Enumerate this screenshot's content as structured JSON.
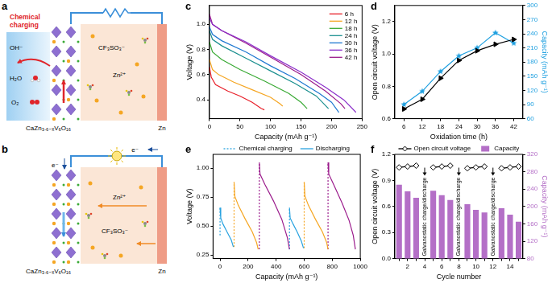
{
  "schematics": [
    {
      "panel": "a",
      "caption": "Chemical charging",
      "species": [
        "OH⁻",
        "H₂O",
        "O₂"
      ],
      "electrolyte": [
        "CF₃SO₃⁻",
        "Zn²⁺"
      ],
      "cathode": "CaZn₃.₆₋ₓV₆O₁₆",
      "anode": "Zn"
    },
    {
      "panel": "b",
      "electrons": [
        "e⁻",
        "e⁻"
      ],
      "electrolyte": [
        "Zn²⁺",
        "CF₃SO₃⁻"
      ],
      "cathode": "CaZn₃.₆₋ₓV₆O₁₆",
      "anode": "Zn"
    }
  ],
  "chart_data": [
    {
      "panel": "c",
      "type": "line",
      "x_label": "Capacity (mAh g⁻¹)",
      "y_label": "Voltage (V)",
      "xlim": [
        0,
        250
      ],
      "xticks": [
        0,
        50,
        100,
        150,
        200,
        250
      ],
      "ylim": [
        0.25,
        1.15
      ],
      "yticks": [
        0.4,
        0.6,
        0.8,
        {
          "value": 1,
          "label": "1.0"
        }
      ],
      "grid": false,
      "legend": "upper right",
      "series": [
        {
          "name": "6 h",
          "color": "#e8202a",
          "x": [
            0,
            3,
            10,
            30,
            50,
            70,
            85,
            90
          ],
          "values": [
            0.66,
            0.58,
            0.52,
            0.47,
            0.43,
            0.38,
            0.33,
            0.32
          ]
        },
        {
          "name": "12 h",
          "color": "#f5a623",
          "x": [
            0,
            5,
            15,
            40,
            70,
            100,
            115,
            120
          ],
          "values": [
            0.72,
            0.64,
            0.6,
            0.54,
            0.48,
            0.42,
            0.37,
            0.35
          ]
        },
        {
          "name": "18 h",
          "color": "#3aaa35",
          "x": [
            0,
            5,
            20,
            50,
            90,
            130,
            150,
            160
          ],
          "values": [
            0.86,
            0.78,
            0.72,
            0.64,
            0.55,
            0.45,
            0.38,
            0.33
          ]
        },
        {
          "name": "24 h",
          "color": "#1a8f8f",
          "x": [
            0,
            5,
            20,
            60,
            100,
            140,
            175,
            195
          ],
          "values": [
            0.95,
            0.88,
            0.83,
            0.73,
            0.63,
            0.53,
            0.43,
            0.33
          ]
        },
        {
          "name": "30 h",
          "color": "#1f78d1",
          "x": [
            0,
            5,
            20,
            60,
            100,
            140,
            180,
            200,
            212
          ],
          "values": [
            0.98,
            0.92,
            0.87,
            0.78,
            0.67,
            0.57,
            0.45,
            0.38,
            0.3
          ]
        },
        {
          "name": "36 h",
          "color": "#8b2fc9",
          "x": [
            0,
            5,
            20,
            60,
            100,
            150,
            190,
            220,
            240
          ],
          "values": [
            1.05,
            1.0,
            0.95,
            0.86,
            0.75,
            0.62,
            0.5,
            0.4,
            0.3
          ]
        },
        {
          "name": "42 h",
          "color": "#9b1c8c",
          "x": [
            0,
            5,
            20,
            60,
            100,
            150,
            190,
            215,
            222
          ],
          "values": [
            1.08,
            1.0,
            0.95,
            0.85,
            0.74,
            0.6,
            0.47,
            0.37,
            0.33
          ]
        }
      ]
    },
    {
      "panel": "d",
      "type": "line",
      "x_label": "Oxidation time (h)",
      "y_label": "Open circuit voltage (V)",
      "y2_label": "Capacity (mAh g⁻¹)",
      "x": [
        6,
        12,
        18,
        24,
        30,
        36,
        42
      ],
      "xlim": [
        3,
        45
      ],
      "xticks": [
        6,
        12,
        18,
        24,
        30,
        36,
        42
      ],
      "ylim": [
        0.6,
        1.3
      ],
      "yticks": [
        0.6,
        0.8,
        {
          "value": 1,
          "label": "1.0"
        },
        1.2
      ],
      "y2lim": [
        60,
        300
      ],
      "y2ticks": [
        60,
        90,
        120,
        150,
        180,
        210,
        240,
        270,
        300
      ],
      "grid": false,
      "series": [
        {
          "color": "#000000",
          "marker": "triangle",
          "values": [
            0.66,
            0.72,
            0.85,
            0.96,
            1.02,
            1.06,
            1.09
          ]
        },
        {
          "color": "#1fa0e0",
          "marker": "star",
          "axis": "y2",
          "values": [
            90,
            118,
            160,
            193,
            210,
            242,
            220
          ]
        }
      ]
    },
    {
      "panel": "e",
      "type": "line",
      "x_label": "Capacity (mAh g⁻¹)",
      "y_label": "Voltage (V)",
      "xlim": [
        -50,
        1000
      ],
      "xticks": [
        0,
        200,
        400,
        600,
        800,
        1000
      ],
      "ylim": [
        0.22,
        1.12
      ],
      "yticks": [
        0.25,
        {
          "value": 0.5,
          "label": "0.50"
        },
        0.75,
        {
          "value": 1,
          "label": "1.00"
        }
      ],
      "grid": false,
      "legend": "top",
      "series": [
        {
          "name": "Chemical charging",
          "color": "#29a3e0",
          "line_style": "dotted",
          "x": [
            0,
            0
          ],
          "values": [
            0.42,
            0.66
          ]
        },
        {
          "name": "Discharging",
          "color": "#29a3e0",
          "line_style": "solid",
          "x": [
            0,
            5,
            20,
            50,
            80,
            95
          ],
          "values": [
            0.66,
            0.57,
            0.52,
            0.45,
            0.38,
            0.32
          ]
        },
        {
          "name": "Chemical charging",
          "color": "#f5a623",
          "line_style": "dotted",
          "x": [
            100,
            100
          ],
          "values": [
            0.32,
            0.88
          ]
        },
        {
          "name": "Discharging",
          "color": "#f5a623",
          "line_style": "solid",
          "x": [
            100,
            105,
            130,
            180,
            230,
            260,
            272
          ],
          "values": [
            0.88,
            0.76,
            0.68,
            0.56,
            0.45,
            0.36,
            0.3
          ]
        },
        {
          "name": "Chemical charging",
          "color": "#9b1c8c",
          "line_style": "dotted",
          "x": [
            280,
            280
          ],
          "values": [
            0.3,
            1.05
          ]
        },
        {
          "name": "Discharging",
          "color": "#9b1c8c",
          "line_style": "solid",
          "x": [
            280,
            285,
            320,
            380,
            440,
            480,
            495
          ],
          "values": [
            1.05,
            0.95,
            0.86,
            0.72,
            0.56,
            0.4,
            0.3
          ]
        },
        {
          "name": "Chemical charging",
          "color": "#29a3e0",
          "line_style": "dotted",
          "x": [
            495,
            495
          ],
          "values": [
            0.3,
            0.66
          ]
        },
        {
          "name": "Discharging",
          "color": "#29a3e0",
          "line_style": "solid",
          "x": [
            495,
            500,
            520,
            550,
            580,
            595
          ],
          "values": [
            0.66,
            0.57,
            0.52,
            0.45,
            0.37,
            0.31
          ]
        },
        {
          "name": "Chemical charging",
          "color": "#f5a623",
          "line_style": "dotted",
          "x": [
            600,
            600
          ],
          "values": [
            0.31,
            0.88
          ]
        },
        {
          "name": "Discharging",
          "color": "#f5a623",
          "line_style": "solid",
          "x": [
            600,
            605,
            630,
            680,
            730,
            760,
            770
          ],
          "values": [
            0.88,
            0.76,
            0.68,
            0.56,
            0.45,
            0.36,
            0.3
          ]
        },
        {
          "name": "Chemical charging",
          "color": "#9b1c8c",
          "line_style": "dotted",
          "x": [
            770,
            770
          ],
          "values": [
            0.3,
            1.05
          ]
        },
        {
          "name": "Discharging",
          "color": "#9b1c8c",
          "line_style": "solid",
          "x": [
            770,
            775,
            810,
            870,
            920,
            950,
            965
          ],
          "values": [
            1.05,
            0.95,
            0.86,
            0.7,
            0.55,
            0.42,
            0.3
          ]
        }
      ]
    },
    {
      "panel": "f",
      "type": "bar",
      "x_label": "Cycle number",
      "y_label": "Open circuit voltage (V)",
      "y2_label": "Capacity (mAh g⁻¹)",
      "categories": [
        null,
        2,
        null,
        4,
        null,
        6,
        null,
        8,
        null,
        10,
        null,
        12,
        null,
        14,
        null
      ],
      "ylim": [
        0,
        1.2
      ],
      "yticks": [
        {
          "value": 0,
          "label": "0.0"
        },
        0.3,
        0.6,
        0.9,
        1.2
      ],
      "y2lim": [
        80,
        320
      ],
      "y2ticks": [
        80,
        120,
        160,
        200,
        240,
        280,
        320
      ],
      "grid": false,
      "legend": "top",
      "series": [
        {
          "name": "Open circuit voltage",
          "type": "line",
          "color": "#000000",
          "marker": "diamond",
          "values": [
            1.05,
            1.06,
            1.07,
            null,
            1.05,
            1.06,
            1.07,
            null,
            1.04,
            1.05,
            1.06,
            null,
            1.04,
            1.05,
            1.06
          ]
        },
        {
          "name": "Capacity",
          "type": "bar",
          "color": "#b46fc7",
          "axis": "y2",
          "values": [
            250,
            235,
            220,
            null,
            236,
            226,
            215,
            null,
            205,
            192,
            186,
            null,
            196,
            181,
            165
          ]
        }
      ],
      "annotations": [
        {
          "x": 4,
          "text": "Galvanostatic charge/discharge"
        },
        {
          "x": 8,
          "text": "Galvanostatic charge/discharge"
        },
        {
          "x": 12,
          "text": "Galvanostatic charge/discharge"
        }
      ]
    }
  ]
}
